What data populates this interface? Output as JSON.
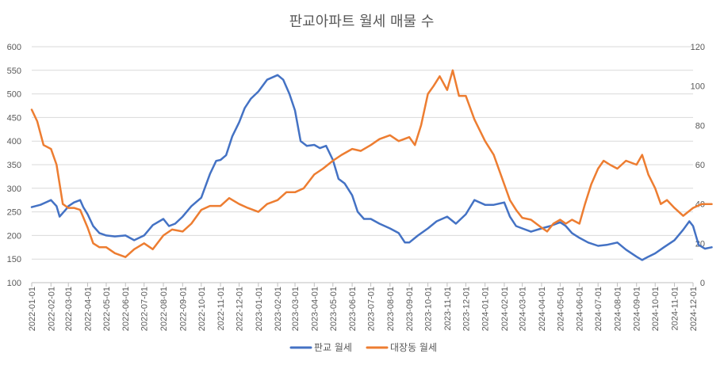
{
  "chart_data": {
    "type": "line",
    "title": "판교아파트 월세 매물 수",
    "xlabel": "",
    "ylabel": "",
    "grid": true,
    "legend_position": "bottom",
    "y_left": {
      "min": 100,
      "max": 600,
      "ticks": [
        100,
        150,
        200,
        250,
        300,
        350,
        400,
        450,
        500,
        550,
        600
      ]
    },
    "y_right": {
      "min": 0,
      "max": 120,
      "ticks": [
        0,
        20,
        40,
        60,
        80,
        100,
        120
      ]
    },
    "x_ticks": [
      "2022-01-01",
      "2022-02-01",
      "2022-03-01",
      "2022-04-01",
      "2022-05-01",
      "2022-06-01",
      "2022-07-01",
      "2022-08-01",
      "2022-09-01",
      "2022-10-01",
      "2022-11-01",
      "2022-12-01",
      "2023-01-01",
      "2023-02-01",
      "2023-03-01",
      "2023-04-01",
      "2023-05-01",
      "2023-06-01",
      "2023-07-01",
      "2023-08-01",
      "2023-09-01",
      "2023-10-01",
      "2023-11-01",
      "2023-12-01",
      "2024-01-01",
      "2024-02-01",
      "2024-03-01",
      "2024-04-01",
      "2024-05-01",
      "2024-06-01",
      "2024-07-01",
      "2024-08-01",
      "2024-09-01",
      "2024-10-01",
      "2024-11-01",
      "2024-12-01"
    ],
    "series": [
      {
        "name": "판교 월세",
        "axis": "left",
        "color": "#4472C4",
        "points": [
          [
            "2022-01-01",
            260
          ],
          [
            "2022-01-15",
            265
          ],
          [
            "2022-02-01",
            275
          ],
          [
            "2022-02-10",
            262
          ],
          [
            "2022-02-15",
            240
          ],
          [
            "2022-02-25",
            255
          ],
          [
            "2022-03-01",
            262
          ],
          [
            "2022-03-10",
            270
          ],
          [
            "2022-03-20",
            275
          ],
          [
            "2022-03-25",
            260
          ],
          [
            "2022-04-01",
            245
          ],
          [
            "2022-04-10",
            220
          ],
          [
            "2022-04-20",
            205
          ],
          [
            "2022-05-01",
            200
          ],
          [
            "2022-05-15",
            198
          ],
          [
            "2022-06-01",
            200
          ],
          [
            "2022-06-15",
            190
          ],
          [
            "2022-07-01",
            200
          ],
          [
            "2022-07-15",
            222
          ],
          [
            "2022-08-01",
            235
          ],
          [
            "2022-08-10",
            220
          ],
          [
            "2022-08-20",
            225
          ],
          [
            "2022-09-01",
            240
          ],
          [
            "2022-09-15",
            262
          ],
          [
            "2022-10-01",
            280
          ],
          [
            "2022-10-15",
            330
          ],
          [
            "2022-10-25",
            358
          ],
          [
            "2022-11-01",
            360
          ],
          [
            "2022-11-10",
            370
          ],
          [
            "2022-11-20",
            410
          ],
          [
            "2022-12-01",
            440
          ],
          [
            "2022-12-10",
            470
          ],
          [
            "2022-12-20",
            490
          ],
          [
            "2023-01-01",
            505
          ],
          [
            "2023-01-15",
            530
          ],
          [
            "2023-02-01",
            540
          ],
          [
            "2023-02-10",
            530
          ],
          [
            "2023-02-20",
            500
          ],
          [
            "2023-03-01",
            465
          ],
          [
            "2023-03-10",
            400
          ],
          [
            "2023-03-20",
            390
          ],
          [
            "2023-04-01",
            392
          ],
          [
            "2023-04-10",
            385
          ],
          [
            "2023-04-20",
            390
          ],
          [
            "2023-05-01",
            360
          ],
          [
            "2023-05-10",
            320
          ],
          [
            "2023-05-20",
            310
          ],
          [
            "2023-06-01",
            285
          ],
          [
            "2023-06-10",
            250
          ],
          [
            "2023-06-20",
            235
          ],
          [
            "2023-07-01",
            235
          ],
          [
            "2023-07-15",
            225
          ],
          [
            "2023-08-01",
            215
          ],
          [
            "2023-08-15",
            205
          ],
          [
            "2023-08-25",
            185
          ],
          [
            "2023-09-01",
            185
          ],
          [
            "2023-09-15",
            200
          ],
          [
            "2023-10-01",
            215
          ],
          [
            "2023-10-15",
            230
          ],
          [
            "2023-11-01",
            240
          ],
          [
            "2023-11-15",
            225
          ],
          [
            "2023-12-01",
            245
          ],
          [
            "2023-12-15",
            275
          ],
          [
            "2024-01-01",
            265
          ],
          [
            "2024-01-15",
            265
          ],
          [
            "2024-02-01",
            270
          ],
          [
            "2024-02-10",
            240
          ],
          [
            "2024-02-20",
            220
          ],
          [
            "2024-03-01",
            215
          ],
          [
            "2024-03-15",
            208
          ],
          [
            "2024-04-01",
            215
          ],
          [
            "2024-04-15",
            220
          ],
          [
            "2024-05-01",
            228
          ],
          [
            "2024-05-10",
            220
          ],
          [
            "2024-05-20",
            205
          ],
          [
            "2024-06-01",
            195
          ],
          [
            "2024-06-15",
            185
          ],
          [
            "2024-07-01",
            178
          ],
          [
            "2024-07-15",
            180
          ],
          [
            "2024-08-01",
            185
          ],
          [
            "2024-08-15",
            170
          ],
          [
            "2024-09-01",
            155
          ],
          [
            "2024-09-10",
            148
          ],
          [
            "2024-09-20",
            155
          ],
          [
            "2024-10-01",
            162
          ],
          [
            "2024-10-15",
            175
          ],
          [
            "2024-11-01",
            190
          ],
          [
            "2024-11-15",
            212
          ],
          [
            "2024-11-25",
            230
          ],
          [
            "2024-12-01",
            220
          ],
          [
            "2024-12-10",
            180
          ],
          [
            "2024-12-20",
            172
          ],
          [
            "2024-12-31",
            175
          ]
        ]
      },
      {
        "name": "대장동 월세",
        "axis": "right",
        "color": "#ED7D31",
        "points": [
          [
            "2022-01-01",
            88
          ],
          [
            "2022-01-10",
            82
          ],
          [
            "2022-01-20",
            70
          ],
          [
            "2022-02-01",
            68
          ],
          [
            "2022-02-10",
            60
          ],
          [
            "2022-02-20",
            40
          ],
          [
            "2022-03-01",
            38
          ],
          [
            "2022-03-10",
            38
          ],
          [
            "2022-03-20",
            37
          ],
          [
            "2022-04-01",
            28
          ],
          [
            "2022-04-10",
            20
          ],
          [
            "2022-04-20",
            18
          ],
          [
            "2022-05-01",
            18
          ],
          [
            "2022-05-15",
            15
          ],
          [
            "2022-06-01",
            13
          ],
          [
            "2022-06-15",
            17
          ],
          [
            "2022-07-01",
            20
          ],
          [
            "2022-07-15",
            17
          ],
          [
            "2022-08-01",
            24
          ],
          [
            "2022-08-15",
            27
          ],
          [
            "2022-09-01",
            26
          ],
          [
            "2022-09-15",
            30
          ],
          [
            "2022-10-01",
            37
          ],
          [
            "2022-10-15",
            39
          ],
          [
            "2022-11-01",
            39
          ],
          [
            "2022-11-15",
            43
          ],
          [
            "2022-12-01",
            40
          ],
          [
            "2022-12-15",
            38
          ],
          [
            "2023-01-01",
            36
          ],
          [
            "2023-01-15",
            40
          ],
          [
            "2023-02-01",
            42
          ],
          [
            "2023-02-15",
            46
          ],
          [
            "2023-03-01",
            46
          ],
          [
            "2023-03-15",
            48
          ],
          [
            "2023-04-01",
            55
          ],
          [
            "2023-04-15",
            58
          ],
          [
            "2023-05-01",
            62
          ],
          [
            "2023-05-15",
            65
          ],
          [
            "2023-06-01",
            68
          ],
          [
            "2023-06-15",
            67
          ],
          [
            "2023-07-01",
            70
          ],
          [
            "2023-07-15",
            73
          ],
          [
            "2023-08-01",
            75
          ],
          [
            "2023-08-15",
            72
          ],
          [
            "2023-09-01",
            74
          ],
          [
            "2023-09-10",
            70
          ],
          [
            "2023-09-20",
            80
          ],
          [
            "2023-10-01",
            96
          ],
          [
            "2023-10-10",
            100
          ],
          [
            "2023-10-20",
            105
          ],
          [
            "2023-11-01",
            98
          ],
          [
            "2023-11-10",
            108
          ],
          [
            "2023-11-20",
            95
          ],
          [
            "2023-12-01",
            95
          ],
          [
            "2023-12-15",
            83
          ],
          [
            "2024-01-01",
            72
          ],
          [
            "2024-01-15",
            65
          ],
          [
            "2024-02-01",
            50
          ],
          [
            "2024-02-10",
            42
          ],
          [
            "2024-02-20",
            37
          ],
          [
            "2024-03-01",
            33
          ],
          [
            "2024-03-15",
            32
          ],
          [
            "2024-04-01",
            28
          ],
          [
            "2024-04-10",
            26
          ],
          [
            "2024-04-20",
            30
          ],
          [
            "2024-05-01",
            32
          ],
          [
            "2024-05-10",
            30
          ],
          [
            "2024-05-20",
            32
          ],
          [
            "2024-06-01",
            30
          ],
          [
            "2024-06-10",
            40
          ],
          [
            "2024-06-20",
            50
          ],
          [
            "2024-07-01",
            58
          ],
          [
            "2024-07-10",
            62
          ],
          [
            "2024-07-20",
            60
          ],
          [
            "2024-08-01",
            58
          ],
          [
            "2024-08-15",
            62
          ],
          [
            "2024-09-01",
            60
          ],
          [
            "2024-09-10",
            65
          ],
          [
            "2024-09-20",
            55
          ],
          [
            "2024-10-01",
            48
          ],
          [
            "2024-10-10",
            40
          ],
          [
            "2024-10-20",
            42
          ],
          [
            "2024-11-01",
            38
          ],
          [
            "2024-11-15",
            34
          ],
          [
            "2024-12-01",
            38
          ],
          [
            "2024-12-15",
            40
          ],
          [
            "2024-12-31",
            40
          ]
        ]
      }
    ]
  }
}
